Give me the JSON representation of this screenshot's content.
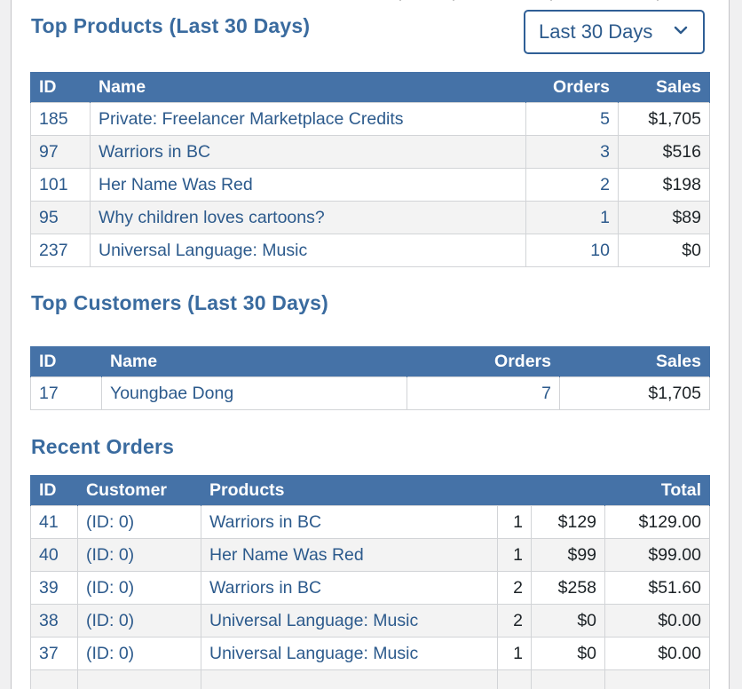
{
  "top_products": {
    "title": "Top Products (Last 30 Days)",
    "range_select": {
      "selected": "Last 30 Days"
    },
    "columns": {
      "id": "ID",
      "name": "Name",
      "orders": "Orders",
      "sales": "Sales"
    },
    "rows": [
      {
        "id": "185",
        "name": "Private: Freelancer Marketplace Credits",
        "orders": "5",
        "sales": "$1,705"
      },
      {
        "id": "97",
        "name": "Warriors in BC",
        "orders": "3",
        "sales": "$516"
      },
      {
        "id": "101",
        "name": "Her Name Was Red",
        "orders": "2",
        "sales": "$198"
      },
      {
        "id": "95",
        "name": "Why children loves cartoons?",
        "orders": "1",
        "sales": "$89"
      },
      {
        "id": "237",
        "name": "Universal Language: Music",
        "orders": "10",
        "sales": "$0"
      }
    ]
  },
  "top_customers": {
    "title": "Top Customers (Last 30 Days)",
    "columns": {
      "id": "ID",
      "name": "Name",
      "orders": "Orders",
      "sales": "Sales"
    },
    "rows": [
      {
        "id": "17",
        "name": "Youngbae Dong",
        "orders": "7",
        "sales": "$1,705"
      }
    ]
  },
  "recent_orders": {
    "title": "Recent Orders",
    "columns": {
      "id": "ID",
      "customer": "Customer",
      "products": "Products",
      "total": "Total"
    },
    "rows": [
      {
        "id": "41",
        "customer": "(ID: 0)",
        "product": "Warriors in BC",
        "qty": "1",
        "line": "$129",
        "total": "$129.00"
      },
      {
        "id": "40",
        "customer": "(ID: 0)",
        "product": "Her Name Was Red",
        "qty": "1",
        "line": "$99",
        "total": "$99.00"
      },
      {
        "id": "39",
        "customer": "(ID: 0)",
        "product": "Warriors in BC",
        "qty": "2",
        "line": "$258",
        "total": "$51.60"
      },
      {
        "id": "38",
        "customer": "(ID: 0)",
        "product": "Universal Language: Music",
        "qty": "2",
        "line": "$0",
        "total": "$0.00"
      },
      {
        "id": "37",
        "customer": "(ID: 0)",
        "product": "Universal Language: Music",
        "qty": "1",
        "line": "$0",
        "total": "$0.00"
      }
    ]
  },
  "colors": {
    "header_bg": "#4572a7",
    "link": "#2c5a8c",
    "title": "#3a6b9f",
    "row_alt": "#f3f3f3"
  },
  "icons": {
    "select_chevron": "chevron-down-icon"
  }
}
